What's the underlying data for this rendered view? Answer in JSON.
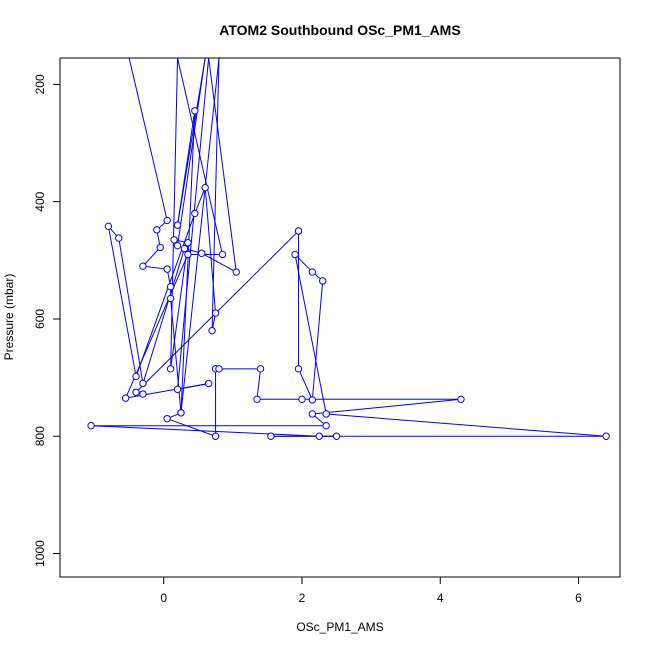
{
  "chart_data": {
    "type": "line",
    "title": "ATOM2 Southbound OSc_PM1_AMS",
    "xlabel": "OSc_PM1_AMS",
    "ylabel": "Pressure (mbar)",
    "xlim": [
      -1.5,
      6.6
    ],
    "ylim": [
      1040,
      155
    ],
    "y_reversed": true,
    "x_ticks": [
      0,
      2,
      4,
      6
    ],
    "y_ticks": [
      200,
      400,
      600,
      800,
      1000
    ],
    "x_tick_labels": [
      "0",
      "2",
      "4",
      "6"
    ],
    "y_tick_labels": [
      "200",
      "400",
      "600",
      "800",
      "1000"
    ],
    "series_color": "#0000ff",
    "marker": "open-circle",
    "series": [
      {
        "values_x_y": [
          [
            -0.5,
            155
          ],
          [
            0.05,
            432
          ],
          [
            -0.1,
            448
          ],
          [
            -0.05,
            478
          ],
          [
            -0.3,
            510
          ],
          [
            0.05,
            515
          ],
          [
            0.1,
            545
          ],
          [
            0.1,
            565
          ],
          [
            0.25,
            760
          ],
          [
            0.8,
            155
          ],
          [
            0.7,
            620
          ],
          [
            0.75,
            590
          ],
          [
            0.6,
            376
          ],
          [
            0.45,
            420
          ],
          [
            -0.4,
            698
          ],
          [
            -0.8,
            442
          ],
          [
            -0.65,
            462
          ],
          [
            -0.3,
            710
          ],
          [
            0.3,
            480
          ],
          [
            0.55,
            488
          ],
          [
            1.05,
            520
          ],
          [
            0.65,
            155
          ],
          [
            0.2,
            720
          ],
          [
            0.65,
            710
          ],
          [
            -0.55,
            735
          ],
          [
            0.35,
            490
          ],
          [
            0.85,
            490
          ],
          [
            0.2,
            155
          ],
          [
            0.1,
            685
          ],
          [
            0.35,
            470
          ],
          [
            0.15,
            465
          ],
          [
            0.2,
            475
          ],
          [
            0.6,
            155
          ],
          [
            0.2,
            440
          ],
          [
            0.45,
            245
          ],
          [
            0.25,
            760
          ],
          [
            0.05,
            770
          ],
          [
            0.75,
            800
          ],
          [
            0.75,
            685
          ],
          [
            0.8,
            685
          ],
          [
            1.4,
            685
          ],
          [
            1.35,
            737
          ],
          [
            2.0,
            737
          ],
          [
            4.3,
            737
          ],
          [
            2.15,
            762
          ],
          [
            2.35,
            782
          ],
          [
            -1.05,
            782
          ],
          [
            2.25,
            800
          ],
          [
            2.5,
            800
          ],
          [
            1.55,
            800
          ],
          [
            6.4,
            800
          ],
          [
            2.35,
            762
          ],
          [
            1.9,
            490
          ],
          [
            2.15,
            520
          ],
          [
            2.3,
            535
          ],
          [
            2.15,
            738
          ],
          [
            1.95,
            685
          ],
          [
            1.95,
            450
          ],
          [
            -0.4,
            725
          ],
          [
            -0.3,
            728
          ]
        ]
      }
    ]
  }
}
